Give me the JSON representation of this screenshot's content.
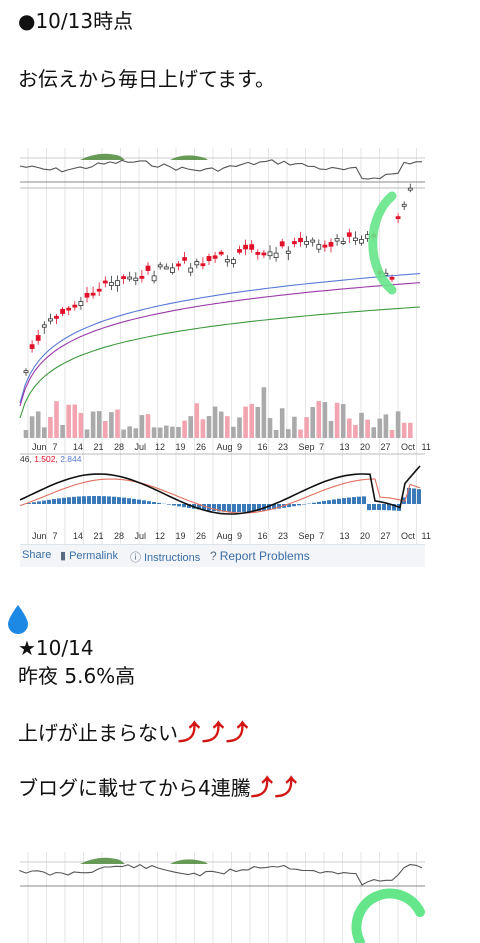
{
  "post1": {
    "heading": "●10/13時点",
    "body": "お伝えから毎日上げてます。"
  },
  "chart": {
    "x_labels": [
      "Jun",
      "7",
      "14",
      "21",
      "28",
      "Jul",
      "12",
      "19",
      "26",
      "Aug",
      "9",
      "16",
      "23",
      "Sep",
      "7",
      "13",
      "20",
      "27",
      "Oct",
      "11"
    ],
    "macd_values": "46, 1.502, 2.844",
    "macd_value_parts": [
      "46,",
      "1.502,",
      "2.844"
    ],
    "colors": {
      "up": "#333333",
      "down": "#e0102a",
      "ma_blue": "#5a7bd6",
      "ma_purple": "#9a3aa8",
      "ma_green": "#3f9a3f",
      "vol_gray": "#aaaaaa",
      "vol_pink": "#f2a4b0",
      "macd_black": "#111111",
      "macd_red": "#e07060",
      "hist_blue": "#3a7ab8",
      "highlight": "#66e68a"
    }
  },
  "toolbar": {
    "share": "Share",
    "permalink": "Permalink",
    "instructions": "Instructions",
    "report": "Report Problems"
  },
  "post2": {
    "drop_icon": "water-drop-icon",
    "date": "★10/14",
    "line1": "昨夜  5.6%高",
    "line2": "上げが止まらない",
    "line2_arrows": "⤴⤴⤴",
    "line3": "ブログに載せてから4連騰",
    "line3_arrows": "⤴⤴"
  }
}
